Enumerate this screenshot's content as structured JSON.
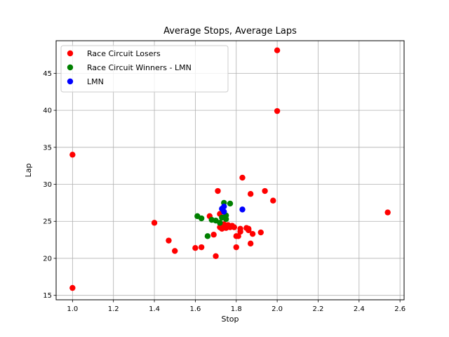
{
  "chart_data": {
    "type": "scatter",
    "title": "Average Stops, Average Laps",
    "xlabel": "Stop",
    "ylabel": "Lap",
    "xlim": [
      0.92,
      2.62
    ],
    "ylim": [
      14.4,
      49.4
    ],
    "xticks": [
      1.0,
      1.2,
      1.4,
      1.6,
      1.8,
      2.0,
      2.2,
      2.4,
      2.6
    ],
    "yticks": [
      15,
      20,
      25,
      30,
      35,
      40,
      45
    ],
    "grid": true,
    "legend_placement": "upper-left",
    "series": [
      {
        "name": "Race Circuit Losers",
        "color": "#ff0000",
        "points": [
          [
            1.0,
            34.0
          ],
          [
            1.0,
            16.0
          ],
          [
            1.4,
            24.8
          ],
          [
            1.47,
            22.4
          ],
          [
            1.5,
            21.0
          ],
          [
            1.6,
            21.4
          ],
          [
            1.63,
            21.5
          ],
          [
            1.67,
            25.7
          ],
          [
            1.69,
            23.2
          ],
          [
            1.7,
            20.3
          ],
          [
            1.71,
            29.1
          ],
          [
            1.72,
            26.0
          ],
          [
            1.72,
            24.2
          ],
          [
            1.73,
            24.0
          ],
          [
            1.74,
            24.6
          ],
          [
            1.75,
            24.1
          ],
          [
            1.76,
            24.5
          ],
          [
            1.77,
            24.2
          ],
          [
            1.78,
            24.4
          ],
          [
            1.79,
            24.2
          ],
          [
            1.8,
            23.0
          ],
          [
            1.8,
            21.5
          ],
          [
            1.81,
            23.0
          ],
          [
            1.82,
            24.0
          ],
          [
            1.82,
            23.6
          ],
          [
            1.83,
            30.9
          ],
          [
            1.85,
            24.1
          ],
          [
            1.86,
            23.8
          ],
          [
            1.86,
            24.0
          ],
          [
            1.87,
            28.7
          ],
          [
            1.87,
            22.0
          ],
          [
            1.88,
            23.3
          ],
          [
            1.92,
            23.5
          ],
          [
            1.94,
            29.1
          ],
          [
            1.98,
            27.8
          ],
          [
            2.0,
            48.1
          ],
          [
            2.0,
            39.9
          ],
          [
            2.54,
            26.2
          ]
        ]
      },
      {
        "name": "Race Circuit Winners - LMN",
        "color": "#008000",
        "points": [
          [
            1.61,
            25.7
          ],
          [
            1.63,
            25.4
          ],
          [
            1.66,
            23.0
          ],
          [
            1.68,
            25.2
          ],
          [
            1.7,
            25.1
          ],
          [
            1.72,
            24.8
          ],
          [
            1.73,
            25.5
          ],
          [
            1.74,
            27.5
          ],
          [
            1.75,
            25.8
          ],
          [
            1.75,
            25.3
          ],
          [
            1.77,
            27.4
          ]
        ]
      },
      {
        "name": "LMN",
        "color": "#0000ff",
        "points": [
          [
            1.74,
            27.0
          ],
          [
            1.74,
            26.3
          ],
          [
            1.73,
            26.7
          ],
          [
            1.83,
            26.6
          ]
        ]
      }
    ]
  }
}
